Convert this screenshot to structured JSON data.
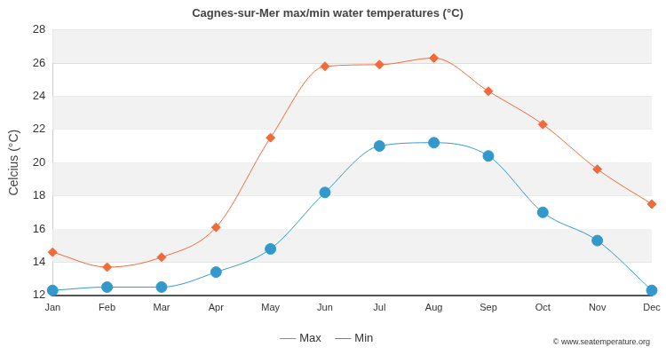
{
  "chart_data": {
    "type": "line",
    "title": "Cagnes-sur-Mer max/min water temperatures (°C)",
    "y_label": "Celcius (°C)",
    "annotations": [
      "© www.seatemperature.org"
    ],
    "categories": [
      "Jan",
      "Feb",
      "Mar",
      "Apr",
      "May",
      "Jun",
      "Jul",
      "Aug",
      "Sep",
      "Oct",
      "Nov",
      "Dec"
    ],
    "series": [
      {
        "name": "Max",
        "color": "#f26a3a",
        "marker": "diamond",
        "line_style": "solid",
        "values": [
          14.6,
          13.7,
          14.3,
          16.1,
          21.5,
          25.8,
          25.9,
          26.3,
          24.3,
          22.3,
          19.6,
          17.5
        ]
      },
      {
        "name": "Min",
        "color": "#3399cc",
        "marker": "circle",
        "line_style": "solid",
        "values": [
          12.3,
          12.5,
          12.5,
          13.4,
          14.8,
          18.2,
          21.0,
          21.2,
          20.4,
          17.0,
          15.3,
          12.3
        ]
      }
    ],
    "ylim": [
      12,
      28
    ],
    "yticks": [
      12,
      14,
      16,
      18,
      20,
      22,
      24,
      26,
      28
    ],
    "grid": true,
    "legend": "bottom"
  }
}
